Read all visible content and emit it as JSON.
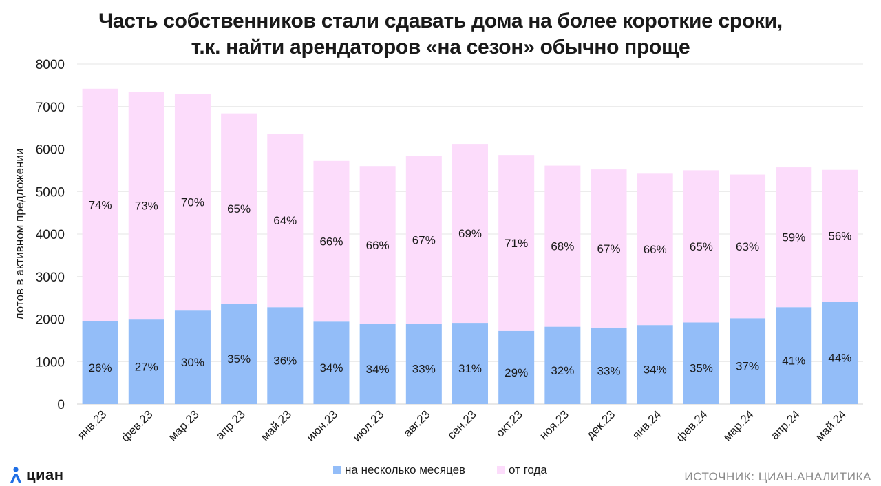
{
  "title_line1": "Часть собственников стали сдавать дома на более короткие сроки,",
  "title_line2": "т.к. найти арендаторов «на сезон» обычно проще",
  "brand": "циан",
  "source": "ИСТОЧНИК: ЦИАН.АНАЛИТИКА",
  "colors": {
    "short": "#93bdf8",
    "long": "#fcdcfb",
    "grid": "#e6e6e6",
    "text": "#1a1a1a"
  },
  "chart_data": {
    "type": "bar",
    "stacked": true,
    "categories": [
      "янв.23",
      "фев.23",
      "мар.23",
      "апр.23",
      "май.23",
      "июн.23",
      "июл.23",
      "авг.23",
      "сен.23",
      "окт.23",
      "ноя.23",
      "дек.23",
      "янв.24",
      "фев.24",
      "мар.24",
      "апр.24",
      "май.24"
    ],
    "series": [
      {
        "name": "на несколько месяцев",
        "values": [
          1950,
          1990,
          2200,
          2360,
          2280,
          1940,
          1880,
          1890,
          1910,
          1720,
          1820,
          1800,
          1860,
          1920,
          2020,
          2280,
          2410
        ],
        "labels": [
          "26%",
          "27%",
          "30%",
          "35%",
          "36%",
          "34%",
          "34%",
          "33%",
          "31%",
          "29%",
          "32%",
          "33%",
          "34%",
          "35%",
          "37%",
          "41%",
          "44%"
        ]
      },
      {
        "name": "от года",
        "values": [
          5470,
          5360,
          5100,
          4480,
          4080,
          3780,
          3720,
          3950,
          4210,
          4140,
          3790,
          3720,
          3560,
          3580,
          3380,
          3290,
          3100
        ],
        "labels": [
          "74%",
          "73%",
          "70%",
          "65%",
          "64%",
          "66%",
          "66%",
          "67%",
          "69%",
          "71%",
          "68%",
          "67%",
          "66%",
          "65%",
          "63%",
          "59%",
          "56%"
        ]
      }
    ],
    "title": "Часть собственников стали сдавать дома на более короткие сроки, т.к. найти арендаторов «на сезон» обычно проще",
    "xlabel": "",
    "ylabel": "лотов в активном предложении",
    "ylim": [
      0,
      8000
    ],
    "yticks": [
      0,
      1000,
      2000,
      3000,
      4000,
      5000,
      6000,
      7000,
      8000
    ],
    "grid": true,
    "legend": "bottom-center"
  }
}
